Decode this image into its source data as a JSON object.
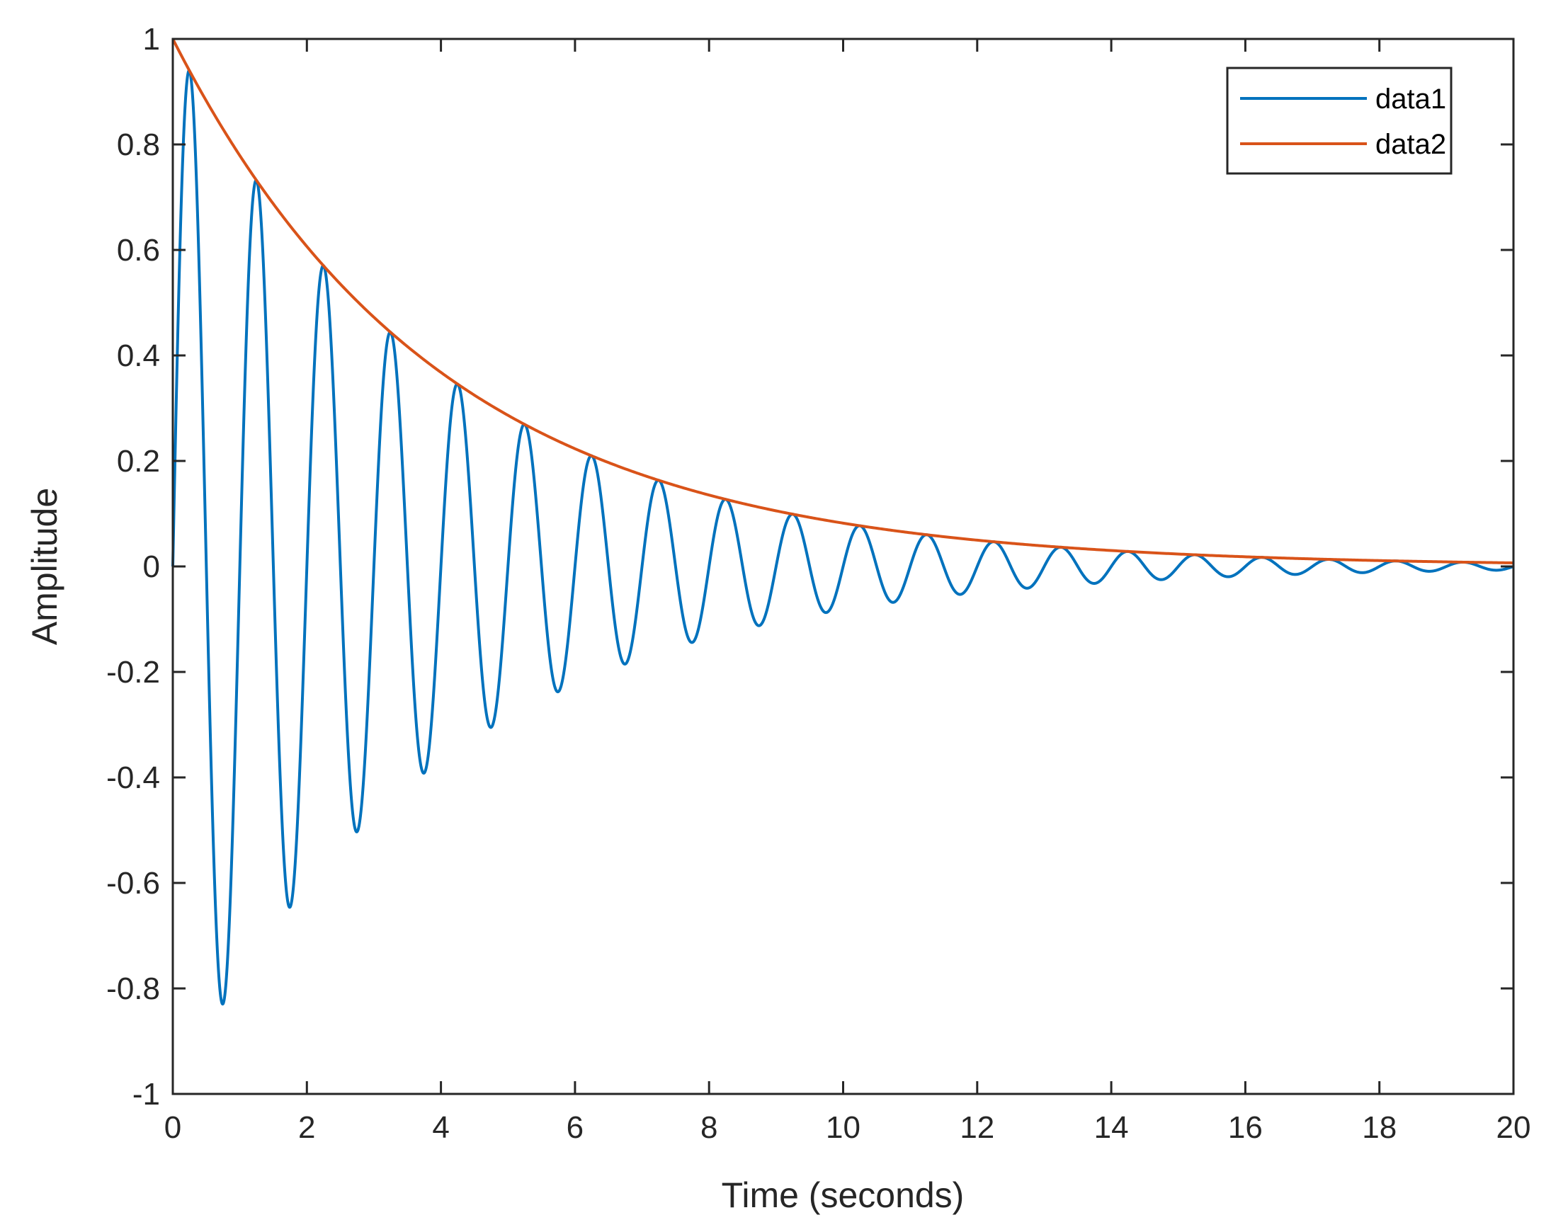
{
  "chart_data": {
    "type": "line",
    "title": "",
    "xlabel": "Time (seconds)",
    "ylabel": "Amplitude",
    "xlim": [
      0,
      20
    ],
    "ylim": [
      -1,
      1
    ],
    "xticks": [
      0,
      2,
      4,
      6,
      8,
      10,
      12,
      14,
      16,
      18,
      20
    ],
    "yticks": [
      -1,
      -0.8,
      -0.6,
      -0.4,
      -0.2,
      0,
      0.2,
      0.4,
      0.6,
      0.8,
      1
    ],
    "xtick_labels": [
      "0",
      "2",
      "4",
      "6",
      "8",
      "10",
      "12",
      "14",
      "16",
      "18",
      "20"
    ],
    "ytick_labels": [
      "-1",
      "-0.8",
      "-0.6",
      "-0.4",
      "-0.2",
      "0",
      "0.2",
      "0.4",
      "0.6",
      "0.8",
      "1"
    ],
    "grid": false,
    "legend_position": "top-right",
    "series": [
      {
        "name": "data1",
        "color": "#0072BD",
        "description": "damped sinusoid y = exp(-t/4) * sin(2*pi*t), period 1 s",
        "decay_time_constant": 4,
        "frequency_hz": 1,
        "peaks": [
          {
            "t": 0.25,
            "y": 0.94
          },
          {
            "t": 1.25,
            "y": 0.73
          },
          {
            "t": 2.25,
            "y": 0.57
          },
          {
            "t": 3.25,
            "y": 0.44
          },
          {
            "t": 4.25,
            "y": 0.35
          },
          {
            "t": 5.25,
            "y": 0.27
          },
          {
            "t": 6.25,
            "y": 0.21
          },
          {
            "t": 7.25,
            "y": 0.16
          },
          {
            "t": 8.25,
            "y": 0.13
          },
          {
            "t": 9.25,
            "y": 0.1
          }
        ],
        "troughs": [
          {
            "t": 0.75,
            "y": -0.83
          },
          {
            "t": 1.75,
            "y": -0.65
          },
          {
            "t": 2.75,
            "y": -0.5
          },
          {
            "t": 3.75,
            "y": -0.39
          },
          {
            "t": 4.75,
            "y": -0.31
          },
          {
            "t": 5.75,
            "y": -0.24
          },
          {
            "t": 6.75,
            "y": -0.19
          },
          {
            "t": 7.75,
            "y": -0.14
          },
          {
            "t": 8.75,
            "y": -0.11
          },
          {
            "t": 9.75,
            "y": -0.09
          }
        ]
      },
      {
        "name": "data2",
        "color": "#D95319",
        "description": "exponential envelope y = exp(-t/4)",
        "decay_time_constant": 4,
        "points": [
          {
            "t": 0,
            "y": 1.0
          },
          {
            "t": 2,
            "y": 0.61
          },
          {
            "t": 4,
            "y": 0.37
          },
          {
            "t": 6,
            "y": 0.22
          },
          {
            "t": 8,
            "y": 0.14
          },
          {
            "t": 10,
            "y": 0.08
          },
          {
            "t": 12,
            "y": 0.05
          },
          {
            "t": 14,
            "y": 0.03
          },
          {
            "t": 16,
            "y": 0.02
          },
          {
            "t": 18,
            "y": 0.01
          },
          {
            "t": 20,
            "y": 0.007
          }
        ]
      }
    ]
  }
}
